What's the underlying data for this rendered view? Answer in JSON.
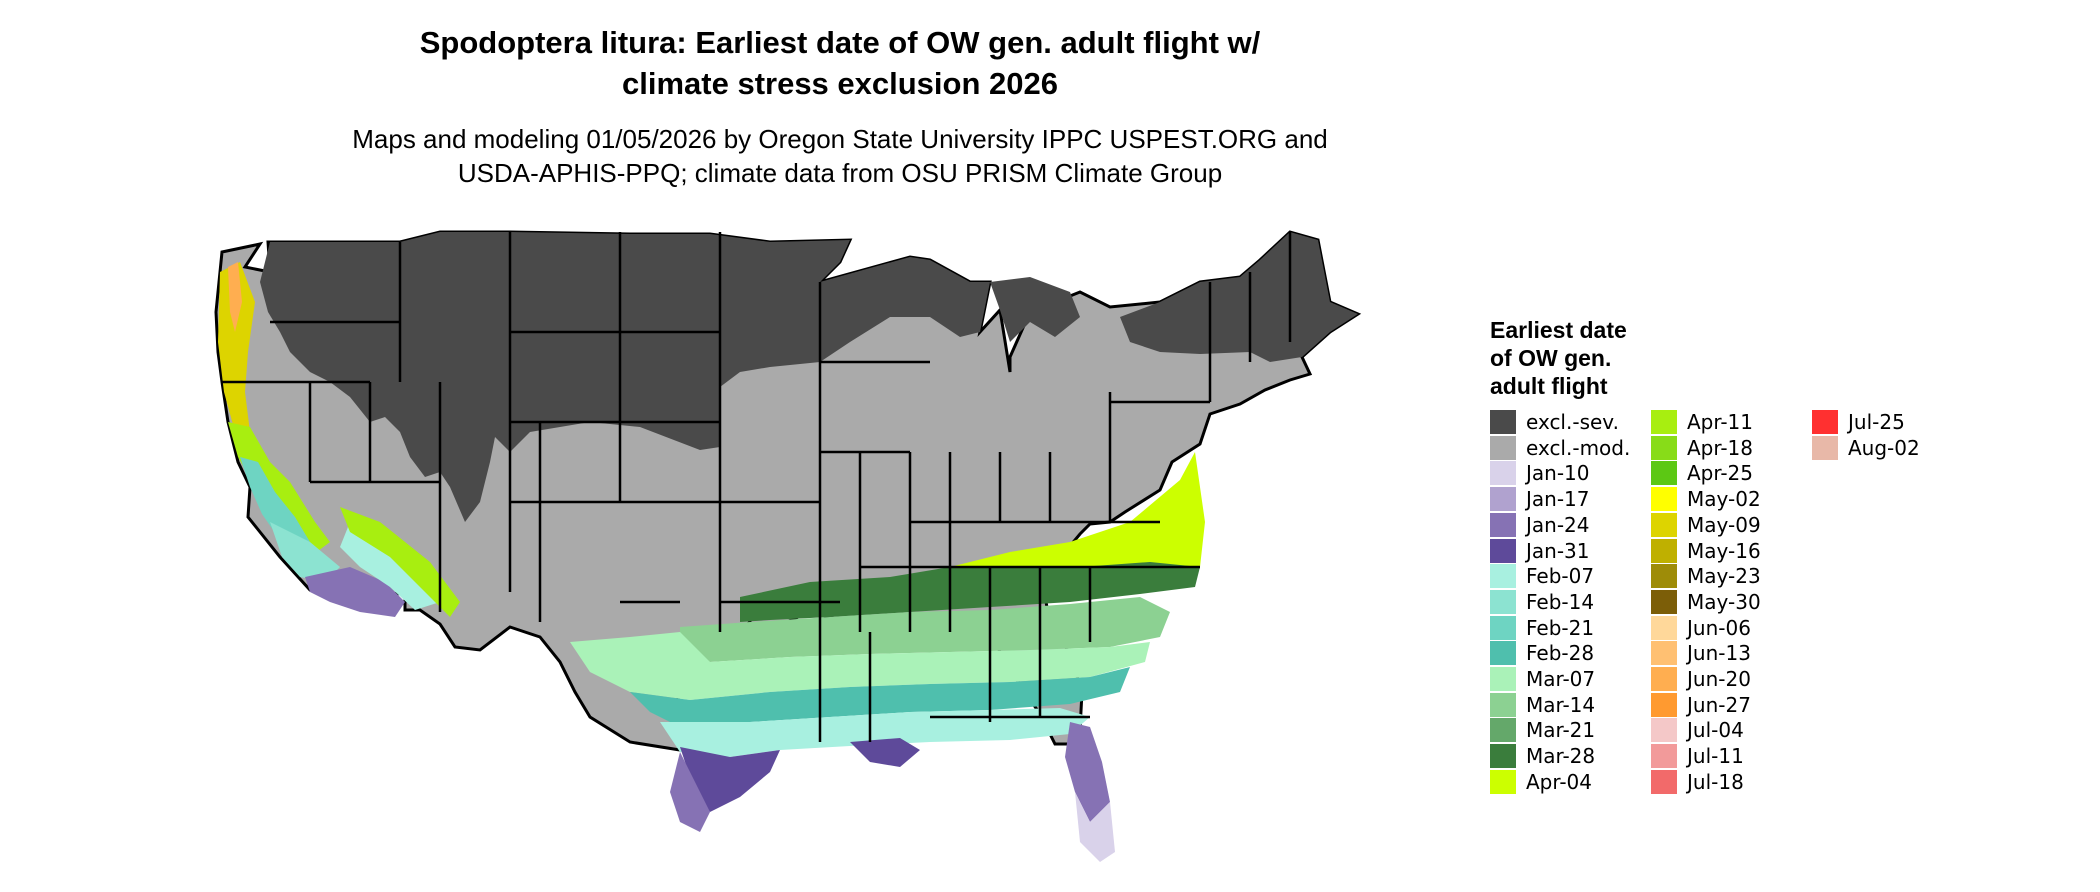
{
  "header": {
    "title_line1": "Spodoptera litura: Earliest date of OW gen. adult flight w/",
    "title_line2": "climate stress exclusion 2026",
    "subtitle_line1": "Maps and modeling 01/05/2026 by Oregon State University IPPC USPEST.ORG and",
    "subtitle_line2": "USDA-APHIS-PPQ; climate data from OSU PRISM Climate Group"
  },
  "legend": {
    "title_line1": "Earliest date",
    "title_line2": "of OW gen.",
    "title_line3": "adult flight",
    "items": [
      {
        "label": "excl.-sev.",
        "color": "#4a4a4a"
      },
      {
        "label": "excl.-mod.",
        "color": "#aaaaaa"
      },
      {
        "label": "Jan-10",
        "color": "#d9d2ea"
      },
      {
        "label": "Jan-17",
        "color": "#b0a2cf"
      },
      {
        "label": "Jan-24",
        "color": "#8672b4"
      },
      {
        "label": "Jan-31",
        "color": "#5e4a9a"
      },
      {
        "label": "Feb-07",
        "color": "#a8f0e0"
      },
      {
        "label": "Feb-14",
        "color": "#8ce3d1"
      },
      {
        "label": "Feb-21",
        "color": "#6ed4c2"
      },
      {
        "label": "Feb-28",
        "color": "#4fbfad"
      },
      {
        "label": "Mar-07",
        "color": "#aaf2b8"
      },
      {
        "label": "Mar-14",
        "color": "#8cd192"
      },
      {
        "label": "Mar-21",
        "color": "#64a86a"
      },
      {
        "label": "Mar-28",
        "color": "#3a7d3c"
      },
      {
        "label": "Apr-04",
        "color": "#ccff00"
      },
      {
        "label": "Apr-11",
        "color": "#a8ee10"
      },
      {
        "label": "Apr-18",
        "color": "#88dc18"
      },
      {
        "label": "Apr-25",
        "color": "#5cc814"
      },
      {
        "label": "May-02",
        "color": "#ffff00"
      },
      {
        "label": "May-09",
        "color": "#ddd400"
      },
      {
        "label": "May-16",
        "color": "#bfb000"
      },
      {
        "label": "May-23",
        "color": "#9e8c08"
      },
      {
        "label": "May-30",
        "color": "#7c5e08"
      },
      {
        "label": "Jun-06",
        "color": "#ffd89a"
      },
      {
        "label": "Jun-13",
        "color": "#ffc072"
      },
      {
        "label": "Jun-20",
        "color": "#ffae50"
      },
      {
        "label": "Jun-27",
        "color": "#ff9a30"
      },
      {
        "label": "Jul-04",
        "color": "#f4c8c8"
      },
      {
        "label": "Jul-11",
        "color": "#f29a9a"
      },
      {
        "label": "Jul-18",
        "color": "#f26a6a"
      },
      {
        "label": "Jul-25",
        "color": "#ff3030"
      },
      {
        "label": "Aug-02",
        "color": "#e8b8a8"
      }
    ]
  },
  "map": {
    "region": "contiguous United States",
    "colors": {
      "excl_sev": "#4a4a4a",
      "excl_mod": "#aaaaaa",
      "border": "#000000"
    }
  }
}
